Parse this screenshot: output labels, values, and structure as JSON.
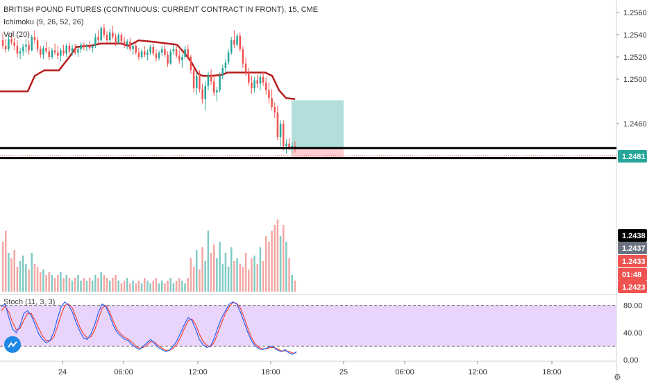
{
  "title": "BRITISH POUND FUTURES (CONTINUOUS: CURRENT CONTRACT IN FRONT), 15, CME",
  "indicators": [
    "Ichimoku (9, 26, 52, 26)",
    "Vol (20)"
  ],
  "stoch_label": "Stoch (11, 3, 3)",
  "gear_icon": "gear-icon",
  "logo_icon": "tradingview-logo-icon",
  "colors": {
    "up": "#26a69a",
    "down": "#ef5350",
    "vol_up": "#80cbc4",
    "vol_down": "#f4a7a4",
    "cloud_line": "#b71c1c",
    "profit": "#b2dfdb",
    "loss": "#ffcdd2",
    "stoch_bg": "#e9d5fb",
    "k": "#2962ff",
    "d": "#f44336",
    "label_green": "#26a69a",
    "label_red": "#ef5350",
    "label_gray": "#6b7280"
  },
  "chart_data": {
    "type": "candlestick",
    "ylim": [
      1.2418,
      1.2567
    ],
    "yticks": [
      "1.2560",
      "1.2540",
      "1.2520",
      "1.2500",
      "1.2460"
    ],
    "xticks": [
      "24",
      "06:00",
      "12:00",
      "18:00",
      "25",
      "06:00",
      "12:00",
      "18:00"
    ],
    "price_labels": [
      {
        "text": "1.2481",
        "style": "green"
      },
      {
        "text": "1.2438",
        "style": "black"
      },
      {
        "text": "1.2437",
        "style": "gray"
      },
      {
        "text": "1.2433",
        "style": "red"
      },
      {
        "text": "01:48",
        "style": "red"
      },
      {
        "text": "1.2423",
        "style": "red"
      }
    ],
    "horizontal_lines": [
      1.2438,
      1.2429
    ],
    "current_price": 1.2437,
    "position": {
      "entry": 1.2438,
      "target": 1.2481,
      "stop": 1.2429
    },
    "stoch_levels": [
      "80.00",
      "40.00",
      "0.00"
    ],
    "stoch_bands": [
      20,
      80
    ],
    "candles": [
      [
        1.2535,
        1.2541,
        1.2527,
        1.253
      ],
      [
        1.253,
        1.2536,
        1.2524,
        1.2527
      ],
      [
        1.2527,
        1.254,
        1.2525,
        1.2536
      ],
      [
        1.2536,
        1.2542,
        1.2531,
        1.2533
      ],
      [
        1.2533,
        1.2537,
        1.2526,
        1.253
      ],
      [
        1.253,
        1.2535,
        1.252,
        1.2523
      ],
      [
        1.2523,
        1.2528,
        1.2518,
        1.2525
      ],
      [
        1.2525,
        1.2532,
        1.2521,
        1.2529
      ],
      [
        1.2529,
        1.2536,
        1.2524,
        1.2531
      ],
      [
        1.2531,
        1.2535,
        1.2522,
        1.2526
      ],
      [
        1.2526,
        1.254,
        1.2525,
        1.2538
      ],
      [
        1.2538,
        1.2544,
        1.2532,
        1.2535
      ],
      [
        1.2535,
        1.2538,
        1.2524,
        1.2527
      ],
      [
        1.2527,
        1.253,
        1.2519,
        1.2522
      ],
      [
        1.2522,
        1.253,
        1.2518,
        1.2528
      ],
      [
        1.2528,
        1.2534,
        1.2523,
        1.2525
      ],
      [
        1.2525,
        1.2529,
        1.2517,
        1.252
      ],
      [
        1.252,
        1.2528,
        1.2518,
        1.2526
      ],
      [
        1.2526,
        1.2532,
        1.2522,
        1.2524
      ],
      [
        1.2524,
        1.253,
        1.2518,
        1.2521
      ],
      [
        1.2521,
        1.2528,
        1.2516,
        1.2526
      ],
      [
        1.2526,
        1.2531,
        1.2521,
        1.2523
      ],
      [
        1.2523,
        1.2532,
        1.252,
        1.253
      ],
      [
        1.253,
        1.2533,
        1.2523,
        1.2525
      ],
      [
        1.2525,
        1.2531,
        1.2521,
        1.2528
      ],
      [
        1.2528,
        1.2532,
        1.2522,
        1.2524
      ],
      [
        1.2524,
        1.253,
        1.252,
        1.2527
      ],
      [
        1.2527,
        1.2533,
        1.2524,
        1.2531
      ],
      [
        1.2531,
        1.2533,
        1.2526,
        1.2529
      ],
      [
        1.2529,
        1.2532,
        1.2525,
        1.253
      ],
      [
        1.253,
        1.2534,
        1.2526,
        1.2528
      ],
      [
        1.2528,
        1.2531,
        1.2524,
        1.253
      ],
      [
        1.253,
        1.2541,
        1.2528,
        1.2538
      ],
      [
        1.2538,
        1.2544,
        1.2532,
        1.2535
      ],
      [
        1.2535,
        1.2548,
        1.2534,
        1.2546
      ],
      [
        1.2546,
        1.255,
        1.2537,
        1.254
      ],
      [
        1.254,
        1.2543,
        1.2533,
        1.2535
      ],
      [
        1.2535,
        1.2545,
        1.2533,
        1.2542
      ],
      [
        1.2542,
        1.2548,
        1.2536,
        1.2538
      ],
      [
        1.2538,
        1.2541,
        1.253,
        1.2533
      ],
      [
        1.2533,
        1.2542,
        1.2531,
        1.254
      ],
      [
        1.254,
        1.2542,
        1.2532,
        1.2534
      ],
      [
        1.2534,
        1.2538,
        1.2528,
        1.2531
      ],
      [
        1.2531,
        1.2536,
        1.2527,
        1.2534
      ],
      [
        1.2534,
        1.2537,
        1.2525,
        1.2527
      ],
      [
        1.2527,
        1.2533,
        1.2522,
        1.253
      ],
      [
        1.253,
        1.2533,
        1.2522,
        1.2524
      ],
      [
        1.2524,
        1.2528,
        1.2517,
        1.252
      ],
      [
        1.252,
        1.2527,
        1.2518,
        1.2525
      ],
      [
        1.2525,
        1.253,
        1.252,
        1.2522
      ],
      [
        1.2522,
        1.2527,
        1.2517,
        1.2524
      ],
      [
        1.2524,
        1.2531,
        1.2522,
        1.2529
      ],
      [
        1.2529,
        1.2532,
        1.2521,
        1.2523
      ],
      [
        1.2523,
        1.2527,
        1.2516,
        1.2519
      ],
      [
        1.2519,
        1.2526,
        1.2517,
        1.2524
      ],
      [
        1.2524,
        1.253,
        1.2521,
        1.2527
      ],
      [
        1.2527,
        1.2531,
        1.252,
        1.2522
      ],
      [
        1.2522,
        1.2525,
        1.2511,
        1.2514
      ],
      [
        1.2514,
        1.2527,
        1.2513,
        1.2525
      ],
      [
        1.2525,
        1.2531,
        1.2522,
        1.2527
      ],
      [
        1.2527,
        1.2532,
        1.2519,
        1.2521
      ],
      [
        1.2521,
        1.2526,
        1.2514,
        1.2517
      ],
      [
        1.2517,
        1.2523,
        1.251,
        1.252
      ],
      [
        1.252,
        1.253,
        1.2518,
        1.2527
      ],
      [
        1.2527,
        1.2531,
        1.2518,
        1.252
      ],
      [
        1.252,
        1.2522,
        1.2505,
        1.2508
      ],
      [
        1.2508,
        1.2512,
        1.2488,
        1.2492
      ],
      [
        1.2492,
        1.2506,
        1.2486,
        1.2503
      ],
      [
        1.2503,
        1.2508,
        1.2488,
        1.2491
      ],
      [
        1.2491,
        1.2496,
        1.2478,
        1.2482
      ],
      [
        1.2482,
        1.2498,
        1.2472,
        1.2494
      ],
      [
        1.2494,
        1.2507,
        1.249,
        1.2504
      ],
      [
        1.2504,
        1.2509,
        1.2495,
        1.2498
      ],
      [
        1.2498,
        1.2503,
        1.2485,
        1.2488
      ],
      [
        1.2488,
        1.2493,
        1.248,
        1.249
      ],
      [
        1.249,
        1.2506,
        1.2488,
        1.2503
      ],
      [
        1.2503,
        1.2513,
        1.25,
        1.251
      ],
      [
        1.251,
        1.2518,
        1.2506,
        1.2515
      ],
      [
        1.2515,
        1.2527,
        1.2513,
        1.2524
      ],
      [
        1.2524,
        1.2538,
        1.2522,
        1.2535
      ],
      [
        1.2535,
        1.2544,
        1.2528,
        1.2531
      ],
      [
        1.2531,
        1.2541,
        1.2529,
        1.2539
      ],
      [
        1.2539,
        1.2542,
        1.2525,
        1.2527
      ],
      [
        1.2527,
        1.253,
        1.251,
        1.2514
      ],
      [
        1.2514,
        1.2519,
        1.2503,
        1.2506
      ],
      [
        1.2506,
        1.251,
        1.2494,
        1.2497
      ],
      [
        1.2497,
        1.2503,
        1.2487,
        1.2492
      ],
      [
        1.2492,
        1.2502,
        1.2488,
        1.2499
      ],
      [
        1.2499,
        1.2504,
        1.2492,
        1.2496
      ],
      [
        1.2496,
        1.2505,
        1.249,
        1.2502
      ],
      [
        1.2502,
        1.2507,
        1.2494,
        1.2497
      ],
      [
        1.2497,
        1.2502,
        1.2486,
        1.249
      ],
      [
        1.249,
        1.2497,
        1.2478,
        1.2483
      ],
      [
        1.2483,
        1.2491,
        1.2472,
        1.2475
      ],
      [
        1.2475,
        1.2479,
        1.2465,
        1.247
      ],
      [
        1.247,
        1.2476,
        1.2445,
        1.2448
      ],
      [
        1.2448,
        1.2463,
        1.244,
        1.246
      ],
      [
        1.246,
        1.2463,
        1.2436,
        1.244
      ],
      [
        1.244,
        1.2446,
        1.2433,
        1.2442
      ],
      [
        1.2442,
        1.2447,
        1.2436,
        1.2438
      ],
      [
        1.2438,
        1.2443,
        1.2433,
        1.244
      ],
      [
        1.244,
        1.2444,
        1.2434,
        1.2437
      ]
    ],
    "ichimoku_line": [
      [
        0,
        1.2489
      ],
      [
        40,
        1.2489
      ],
      [
        50,
        1.2503
      ],
      [
        64,
        1.2508
      ],
      [
        85,
        1.2508
      ],
      [
        100,
        1.252
      ],
      [
        110,
        1.2529
      ],
      [
        130,
        1.253
      ],
      [
        145,
        1.2532
      ],
      [
        175,
        1.2532
      ],
      [
        185,
        1.253
      ],
      [
        200,
        1.2535
      ],
      [
        230,
        1.2533
      ],
      [
        255,
        1.2531
      ],
      [
        265,
        1.2524
      ],
      [
        275,
        1.2516
      ],
      [
        285,
        1.2505
      ],
      [
        292,
        1.2503
      ],
      [
        305,
        1.2503
      ],
      [
        320,
        1.2504
      ],
      [
        328,
        1.2506
      ],
      [
        382,
        1.2506
      ],
      [
        392,
        1.2503
      ],
      [
        402,
        1.249
      ],
      [
        412,
        1.2483
      ],
      [
        425,
        1.2482
      ]
    ],
    "volume": [
      18,
      22,
      14,
      12,
      15,
      9,
      11,
      13,
      10,
      8,
      14,
      10,
      9,
      7,
      8,
      6,
      7,
      6,
      5,
      6,
      7,
      5,
      6,
      5,
      4,
      5,
      6,
      4,
      5,
      4,
      5,
      4,
      6,
      5,
      7,
      6,
      5,
      4,
      5,
      6,
      4,
      3,
      4,
      5,
      3,
      4,
      3,
      4,
      3,
      5,
      4,
      3,
      4,
      5,
      3,
      4,
      3,
      4,
      5,
      3,
      4,
      5,
      4,
      3,
      5,
      12,
      9,
      15,
      8,
      16,
      11,
      22,
      14,
      17,
      12,
      18,
      10,
      14,
      9,
      16,
      11,
      12,
      10,
      9,
      14,
      8,
      12,
      13,
      10,
      16,
      11,
      20,
      18,
      22,
      24,
      26,
      20,
      24,
      18,
      12,
      6,
      4
    ],
    "stoch_k": [
      78,
      82,
      62,
      45,
      40,
      50,
      68,
      72,
      65,
      52,
      38,
      30,
      25,
      28,
      40,
      60,
      78,
      85,
      80,
      70,
      55,
      42,
      32,
      30,
      38,
      52,
      70,
      82,
      78,
      65,
      50,
      40,
      35,
      30,
      28,
      22,
      18,
      15,
      20,
      25,
      30,
      24,
      18,
      15,
      12,
      14,
      20,
      28,
      40,
      52,
      62,
      58,
      45,
      30,
      22,
      18,
      20,
      32,
      48,
      62,
      72,
      82,
      85,
      82,
      70,
      55,
      40,
      28,
      20,
      16,
      15,
      17,
      20,
      18,
      14,
      12,
      15,
      10,
      8,
      12
    ],
    "stoch_d": [
      72,
      79,
      70,
      55,
      44,
      46,
      58,
      68,
      68,
      58,
      46,
      35,
      28,
      28,
      33,
      48,
      66,
      80,
      82,
      76,
      62,
      48,
      38,
      32,
      34,
      44,
      60,
      76,
      80,
      70,
      56,
      44,
      38,
      33,
      30,
      26,
      20,
      17,
      18,
      22,
      27,
      26,
      21,
      17,
      14,
      14,
      17,
      23,
      33,
      46,
      57,
      60,
      52,
      38,
      27,
      21,
      19,
      26,
      40,
      55,
      68,
      78,
      84,
      83,
      76,
      62,
      46,
      32,
      23,
      18,
      16,
      16,
      18,
      18,
      16,
      13,
      13,
      12,
      10,
      10
    ]
  }
}
